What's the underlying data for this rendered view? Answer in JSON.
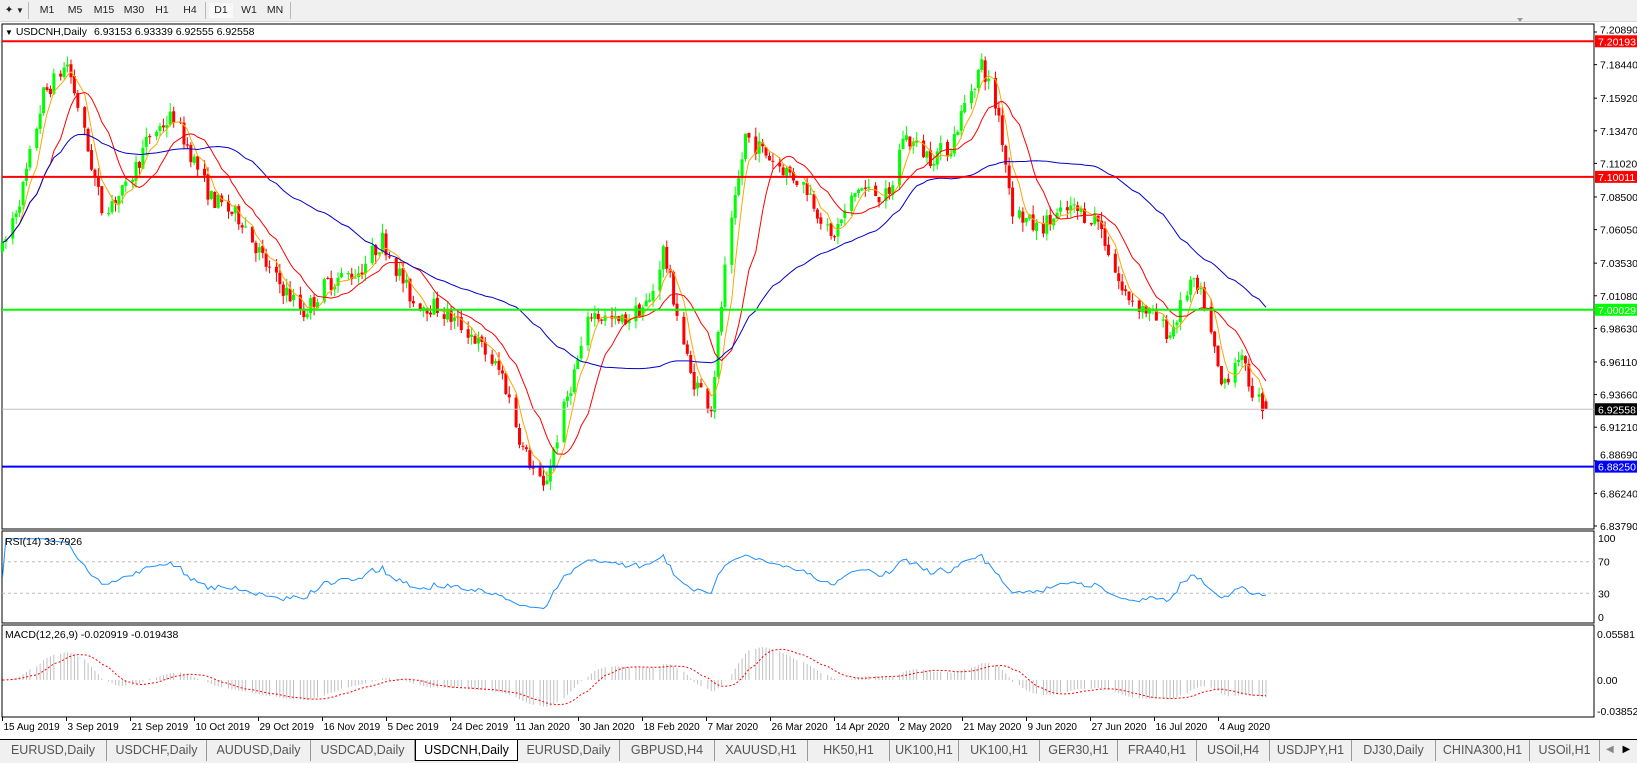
{
  "toolbar": {
    "timeframes": [
      "M1",
      "M5",
      "M15",
      "M30",
      "H1",
      "H4",
      "D1",
      "W1",
      "MN"
    ],
    "active_timeframe": "D1"
  },
  "chart": {
    "symbol_label": "USDCNH,Daily",
    "ohlc_label": "6.93153 6.93339 6.92555 6.92558",
    "colors": {
      "bull": "#00ff00",
      "bear": "#ff0000",
      "ma_fast": "#ffa500",
      "ma_mid": "#ff0000",
      "ma_slow": "#0000cc",
      "grid": "#c0c0c0"
    }
  },
  "chart_data": {
    "type": "candlestick",
    "symbol": "USDCNH",
    "period": "Daily",
    "last_bar": {
      "open": 6.93153,
      "high": 6.93339,
      "low": 6.92555,
      "close": 6.92558
    },
    "close_path": [
      [
        "2019-08-15",
        7.045
      ],
      [
        "2019-08-21",
        7.092
      ],
      [
        "2019-08-27",
        7.162
      ],
      [
        "2019-09-03",
        7.185
      ],
      [
        "2019-09-06",
        7.154
      ],
      [
        "2019-09-13",
        7.076
      ],
      [
        "2019-09-20",
        7.09
      ],
      [
        "2019-09-27",
        7.131
      ],
      [
        "2019-10-04",
        7.146
      ],
      [
        "2019-10-15",
        7.084
      ],
      [
        "2019-10-24",
        7.068
      ],
      [
        "2019-11-01",
        7.029
      ],
      [
        "2019-11-11",
        6.998
      ],
      [
        "2019-11-18",
        7.021
      ],
      [
        "2019-11-27",
        7.029
      ],
      [
        "2019-12-04",
        7.053
      ],
      [
        "2019-12-13",
        7.006
      ],
      [
        "2019-12-20",
        7.002
      ],
      [
        "2019-12-30",
        6.982
      ],
      [
        "2020-01-08",
        6.951
      ],
      [
        "2020-01-14",
        6.896
      ],
      [
        "2020-01-20",
        6.865
      ],
      [
        "2020-01-27",
        6.935
      ],
      [
        "2020-02-03",
        6.998
      ],
      [
        "2020-02-11",
        6.99
      ],
      [
        "2020-02-20",
        7.006
      ],
      [
        "2020-02-24",
        7.045
      ],
      [
        "2020-03-03",
        6.951
      ],
      [
        "2020-03-09",
        6.928
      ],
      [
        "2020-03-13",
        7.029
      ],
      [
        "2020-03-19",
        7.131
      ],
      [
        "2020-03-26",
        7.115
      ],
      [
        "2020-04-06",
        7.092
      ],
      [
        "2020-04-13",
        7.053
      ],
      [
        "2020-04-21",
        7.092
      ],
      [
        "2020-04-30",
        7.084
      ],
      [
        "2020-05-04",
        7.131
      ],
      [
        "2020-05-12",
        7.115
      ],
      [
        "2020-05-18",
        7.123
      ],
      [
        "2020-05-22",
        7.154
      ],
      [
        "2020-05-27",
        7.185
      ],
      [
        "2020-06-01",
        7.146
      ],
      [
        "2020-06-05",
        7.076
      ],
      [
        "2020-06-12",
        7.061
      ],
      [
        "2020-06-22",
        7.076
      ],
      [
        "2020-06-30",
        7.068
      ],
      [
        "2020-07-07",
        7.014
      ],
      [
        "2020-07-15",
        6.998
      ],
      [
        "2020-07-21",
        6.982
      ],
      [
        "2020-07-27",
        7.021
      ],
      [
        "2020-07-31",
        7.006
      ],
      [
        "2020-08-05",
        6.943
      ],
      [
        "2020-08-10",
        6.967
      ],
      [
        "2020-08-14",
        6.94
      ],
      [
        "2020-08-18",
        6.92558
      ]
    ],
    "price_axis": [
      "7.20890",
      "7.18440",
      "7.15920",
      "7.13470",
      "7.11020",
      "7.08500",
      "7.06050",
      "7.03530",
      "7.01080",
      "6.98630",
      "6.96110",
      "6.93660",
      "6.91210",
      "6.88690",
      "6.86240",
      "6.83790"
    ],
    "levels": [
      {
        "label": "7.20193",
        "color": "#ff0000"
      },
      {
        "label": "7.10011",
        "color": "#ff0000"
      },
      {
        "label": "7.00029",
        "color": "#00ff00"
      },
      {
        "label": "6.88250",
        "color": "#0000ff"
      }
    ],
    "bid_label": "6.92558",
    "date_axis": [
      "15 Aug 2019",
      "3 Sep 2019",
      "21 Sep 2019",
      "10 Oct 2019",
      "29 Oct 2019",
      "16 Nov 2019",
      "5 Dec 2019",
      "24 Dec 2019",
      "11 Jan 2020",
      "30 Jan 2020",
      "18 Feb 2020",
      "7 Mar 2020",
      "26 Mar 2020",
      "14 Apr 2020",
      "2 May 2020",
      "21 May 2020",
      "9 Jun 2020",
      "27 Jun 2020",
      "16 Jul 2020",
      "4 Aug 2020"
    ],
    "rsi": {
      "label": "RSI(14) 33.7926",
      "axis": [
        "100",
        "70",
        "30",
        "0"
      ],
      "levels": [
        70,
        30
      ],
      "color": "#1e90ff"
    },
    "macd": {
      "label": "MACD(12,26,9) -0.020919 -0.019438",
      "axis": [
        "0.05581",
        "0.00",
        "-0.038524"
      ],
      "histogram_color": "#c0c0c0",
      "signal_color": "#ff0000"
    }
  },
  "tabs": {
    "items": [
      "EURUSD,Daily",
      "USDCHF,Daily",
      "AUDUSD,Daily",
      "USDCAD,Daily",
      "USDCNH,Daily",
      "EURUSD,Daily",
      "GBPUSD,H4",
      "XAUUSD,H1",
      "HK50,H1",
      "UK100,H1",
      "UK100,H1",
      "GER30,H1",
      "FRA40,H1",
      "USOil,H4",
      "USDJPY,H1",
      "DJ30,Daily",
      "CHINA300,H1",
      "USOil,H1"
    ],
    "active": "USDCNH,Daily"
  }
}
